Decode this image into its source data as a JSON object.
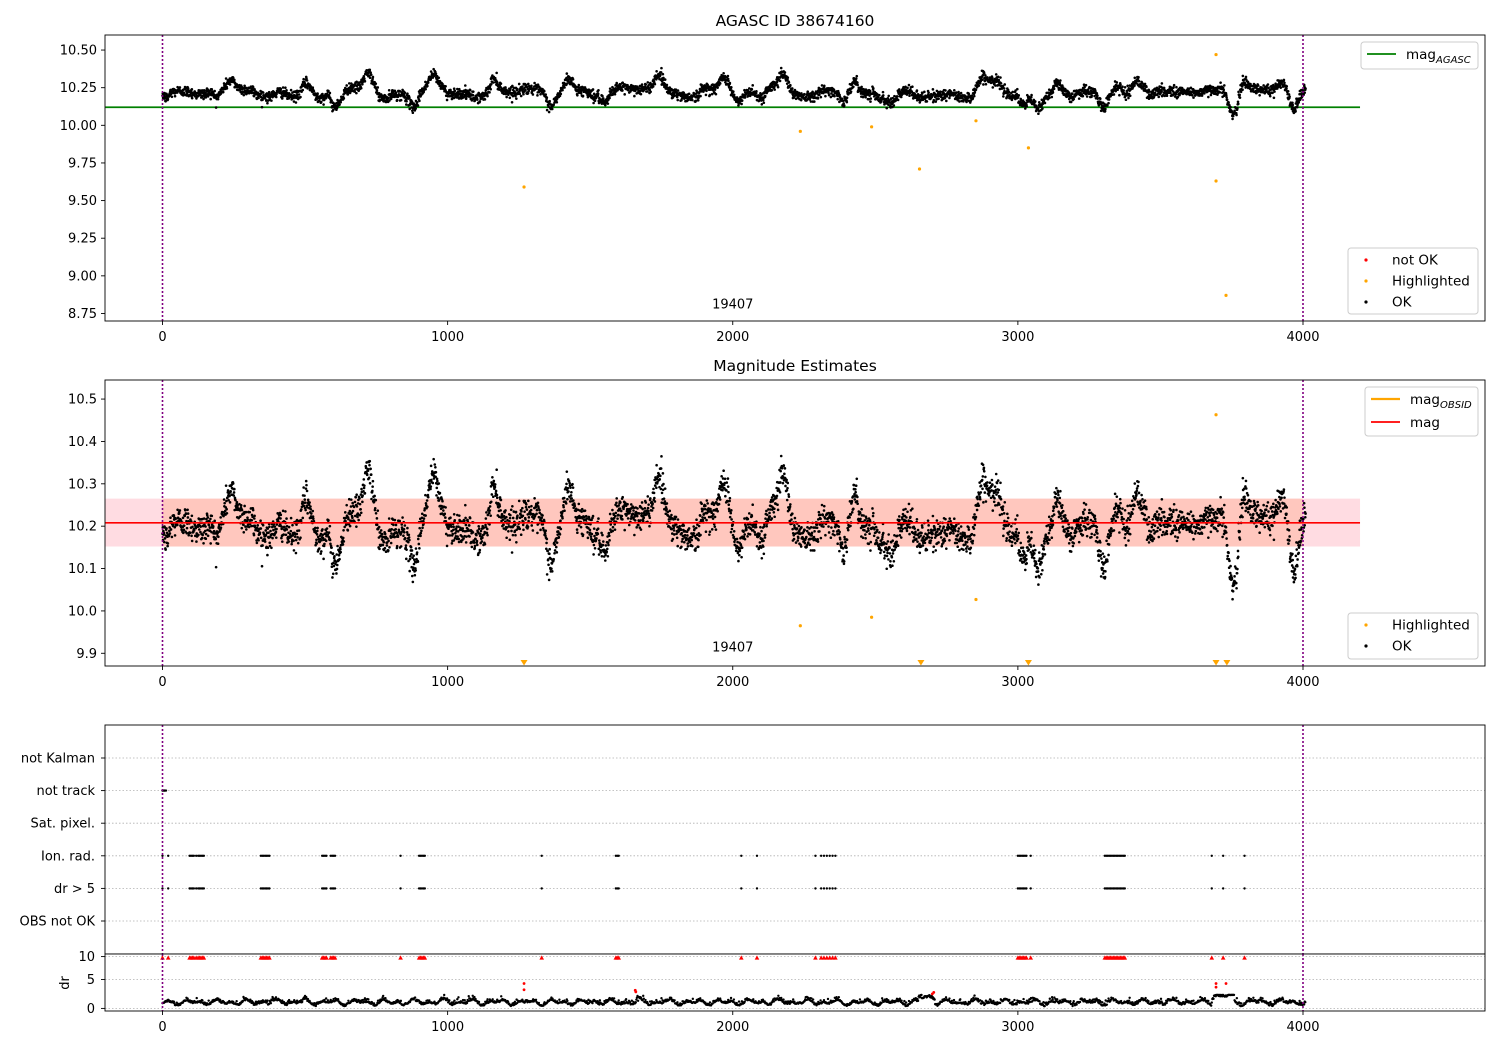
{
  "chart_data": [
    {
      "type": "scatter",
      "title": "AGASC ID 38674160",
      "xlim": [
        -200,
        4650
      ],
      "ylim": [
        8.7,
        10.6
      ],
      "xticks": [
        0,
        1000,
        2000,
        3000,
        4000
      ],
      "yticks": [
        8.75,
        9.0,
        9.25,
        9.5,
        9.75,
        10.0,
        10.25,
        10.5
      ],
      "ytick_labels": [
        "8.75",
        "9.00",
        "9.25",
        "9.50",
        "9.75",
        "10.00",
        "10.25",
        "10.50"
      ],
      "vlines": [
        0,
        4000
      ],
      "hline": {
        "label": "mag",
        "sub": "AGASC",
        "value": 10.12,
        "color": "#008000",
        "x_range": [
          -200,
          4200
        ]
      },
      "annotations": [
        {
          "text": "19407",
          "x": 2000,
          "y": 8.77
        }
      ],
      "legend_top": {
        "position": "upper right",
        "entries": [
          {
            "label": "mag",
            "sub": "AGASC",
            "color": "#008000"
          }
        ]
      },
      "legend_bottom": {
        "position": "lower right",
        "entries": [
          {
            "label": "not OK",
            "color": "#ff0000"
          },
          {
            "label": "Highlighted",
            "color": "#ffa500"
          },
          {
            "label": "OK",
            "color": "#000000"
          }
        ]
      },
      "series": [
        {
          "name": "OK",
          "color": "#000000",
          "description": "dense band of ~4000 samples between 10.10 and 10.33"
        },
        {
          "name": "Highlighted",
          "color": "#ffa500",
          "points": [
            [
              1268,
              9.59
            ],
            [
              2237,
              9.96
            ],
            [
              2487,
              9.99
            ],
            [
              2655,
              9.71
            ],
            [
              2853,
              10.03
            ],
            [
              3037,
              9.85
            ],
            [
              3695,
              10.47
            ],
            [
              3695,
              9.63
            ],
            [
              3730,
              8.87
            ]
          ]
        }
      ]
    },
    {
      "type": "scatter",
      "title": "Magnitude Estimates",
      "xlim": [
        -200,
        4650
      ],
      "ylim": [
        9.87,
        10.545
      ],
      "xticks": [
        0,
        1000,
        2000,
        3000,
        4000
      ],
      "yticks": [
        9.9,
        10.0,
        10.1,
        10.2,
        10.3,
        10.4,
        10.5
      ],
      "ytick_labels": [
        "9.9",
        "10.0",
        "10.1",
        "10.2",
        "10.3",
        "10.4",
        "10.5"
      ],
      "vlines": [
        0,
        4000
      ],
      "mag_line": {
        "label": "mag",
        "value": 10.208,
        "color": "#ff0000",
        "band": [
          10.152,
          10.265
        ],
        "x_range": [
          -200,
          4200
        ]
      },
      "mag_obsid_band": {
        "label": "mag",
        "sub": "OBSID",
        "color": "#ffa500",
        "band": [
          10.152,
          10.265
        ],
        "x_range": [
          -200,
          4200
        ]
      },
      "annotations": [
        {
          "text": "19407",
          "x": 2000,
          "y": 9.9
        }
      ],
      "legend_top": {
        "position": "upper right",
        "entries": [
          {
            "label": "mag",
            "sub": "OBSID",
            "color": "#ffa500"
          },
          {
            "label": "mag",
            "color": "#ff0000"
          }
        ]
      },
      "legend_bottom": {
        "position": "lower right",
        "entries": [
          {
            "label": "Highlighted",
            "color": "#ffa500"
          },
          {
            "label": "OK",
            "color": "#000000"
          }
        ]
      },
      "series": [
        {
          "name": "OK",
          "color": "#000000",
          "description": "dense band of ~4000 samples between 10.08 and 10.35"
        },
        {
          "name": "Highlighted",
          "color": "#ffa500",
          "points": [
            [
              2237,
              9.965
            ],
            [
              2487,
              9.985
            ],
            [
              2853,
              10.027
            ],
            [
              3695,
              10.463
            ]
          ]
        },
        {
          "name": "Highlighted (below axis)",
          "color": "#ffa500",
          "marker": "down-triangle",
          "x": [
            1268,
            2660,
            3037,
            3695,
            3733
          ]
        }
      ]
    },
    {
      "type": "scatter",
      "title": "",
      "xlim": [
        -200,
        4650
      ],
      "categories": [
        "OBS not OK",
        "dr > 5",
        "Ion. rad.",
        "Sat. pixel.",
        "not track",
        "not Kalman"
      ],
      "vlines": [
        0,
        4000
      ],
      "flag_points": {
        "not track": [
          0,
          3,
          6,
          8,
          12
        ],
        "Ion. rad.": [
          0,
          20,
          95,
          100,
          105,
          110,
          118,
          125,
          130,
          135,
          140,
          145,
          345,
          350,
          355,
          360,
          365,
          370,
          375,
          560,
          565,
          570,
          575,
          590,
          595,
          600,
          605,
          835,
          900,
          905,
          910,
          915,
          920,
          1330,
          1590,
          1595,
          1600,
          2030,
          2085,
          2290,
          2310,
          2320,
          2330,
          2340,
          2350,
          2360,
          3000,
          3005,
          3010,
          3015,
          3020,
          3025,
          3030,
          3045,
          3305,
          3310,
          3315,
          3320,
          3325,
          3330,
          3335,
          3340,
          3345,
          3350,
          3355,
          3360,
          3365,
          3370,
          3375,
          3680,
          3720,
          3795
        ],
        "dr > 5": [
          0,
          20,
          95,
          100,
          105,
          110,
          118,
          125,
          130,
          135,
          140,
          145,
          345,
          350,
          355,
          360,
          365,
          370,
          375,
          560,
          565,
          570,
          575,
          590,
          595,
          600,
          605,
          835,
          900,
          905,
          910,
          915,
          920,
          1330,
          1590,
          1595,
          1600,
          2030,
          2085,
          2290,
          2310,
          2320,
          2330,
          2340,
          2350,
          2360,
          3000,
          3005,
          3010,
          3015,
          3020,
          3025,
          3030,
          3045,
          3305,
          3310,
          3315,
          3320,
          3325,
          3330,
          3335,
          3340,
          3345,
          3350,
          3355,
          3360,
          3365,
          3370,
          3375,
          3680,
          3720,
          3795
        ]
      }
    },
    {
      "type": "scatter",
      "title": "",
      "xlim": [
        -200,
        4650
      ],
      "ylim": [
        -0.5,
        10.5
      ],
      "ylabel": "dr",
      "yticks": [
        0,
        5,
        10
      ],
      "ytick_labels": [
        "0",
        "5",
        "10"
      ],
      "xticks": [
        0,
        1000,
        2000,
        3000,
        4000
      ],
      "vlines": [
        0,
        4000
      ],
      "series": [
        {
          "name": "OK",
          "color": "#000000",
          "description": "~4000 samples of dr mostly between 0 and 2.5"
        },
        {
          "name": "flagged (dr > 5, clipped at 10)",
          "color": "#ff0000",
          "marker": "up-triangle",
          "x": [
            0,
            20,
            95,
            100,
            105,
            110,
            118,
            125,
            130,
            135,
            140,
            145,
            345,
            350,
            355,
            360,
            365,
            370,
            375,
            560,
            565,
            570,
            575,
            590,
            595,
            600,
            605,
            835,
            900,
            905,
            910,
            915,
            920,
            1330,
            1590,
            1595,
            1600,
            2030,
            2085,
            2290,
            2310,
            2320,
            2330,
            2340,
            2350,
            2360,
            3000,
            3005,
            3010,
            3015,
            3020,
            3025,
            3030,
            3045,
            3305,
            3310,
            3315,
            3320,
            3325,
            3330,
            3335,
            3340,
            3345,
            3350,
            3355,
            3360,
            3365,
            3370,
            3375,
            3680,
            3720,
            3795
          ]
        },
        {
          "name": "not OK",
          "color": "#ff0000",
          "points": [
            [
              1268,
              4.8
            ],
            [
              1268,
              3.6
            ],
            [
              1658,
              3.5
            ],
            [
              1660,
              3.2
            ],
            [
              2700,
              2.8
            ],
            [
              2705,
              3.1
            ],
            [
              3695,
              4.8
            ],
            [
              3695,
              4.1
            ],
            [
              3730,
              4.8
            ]
          ]
        }
      ]
    }
  ]
}
